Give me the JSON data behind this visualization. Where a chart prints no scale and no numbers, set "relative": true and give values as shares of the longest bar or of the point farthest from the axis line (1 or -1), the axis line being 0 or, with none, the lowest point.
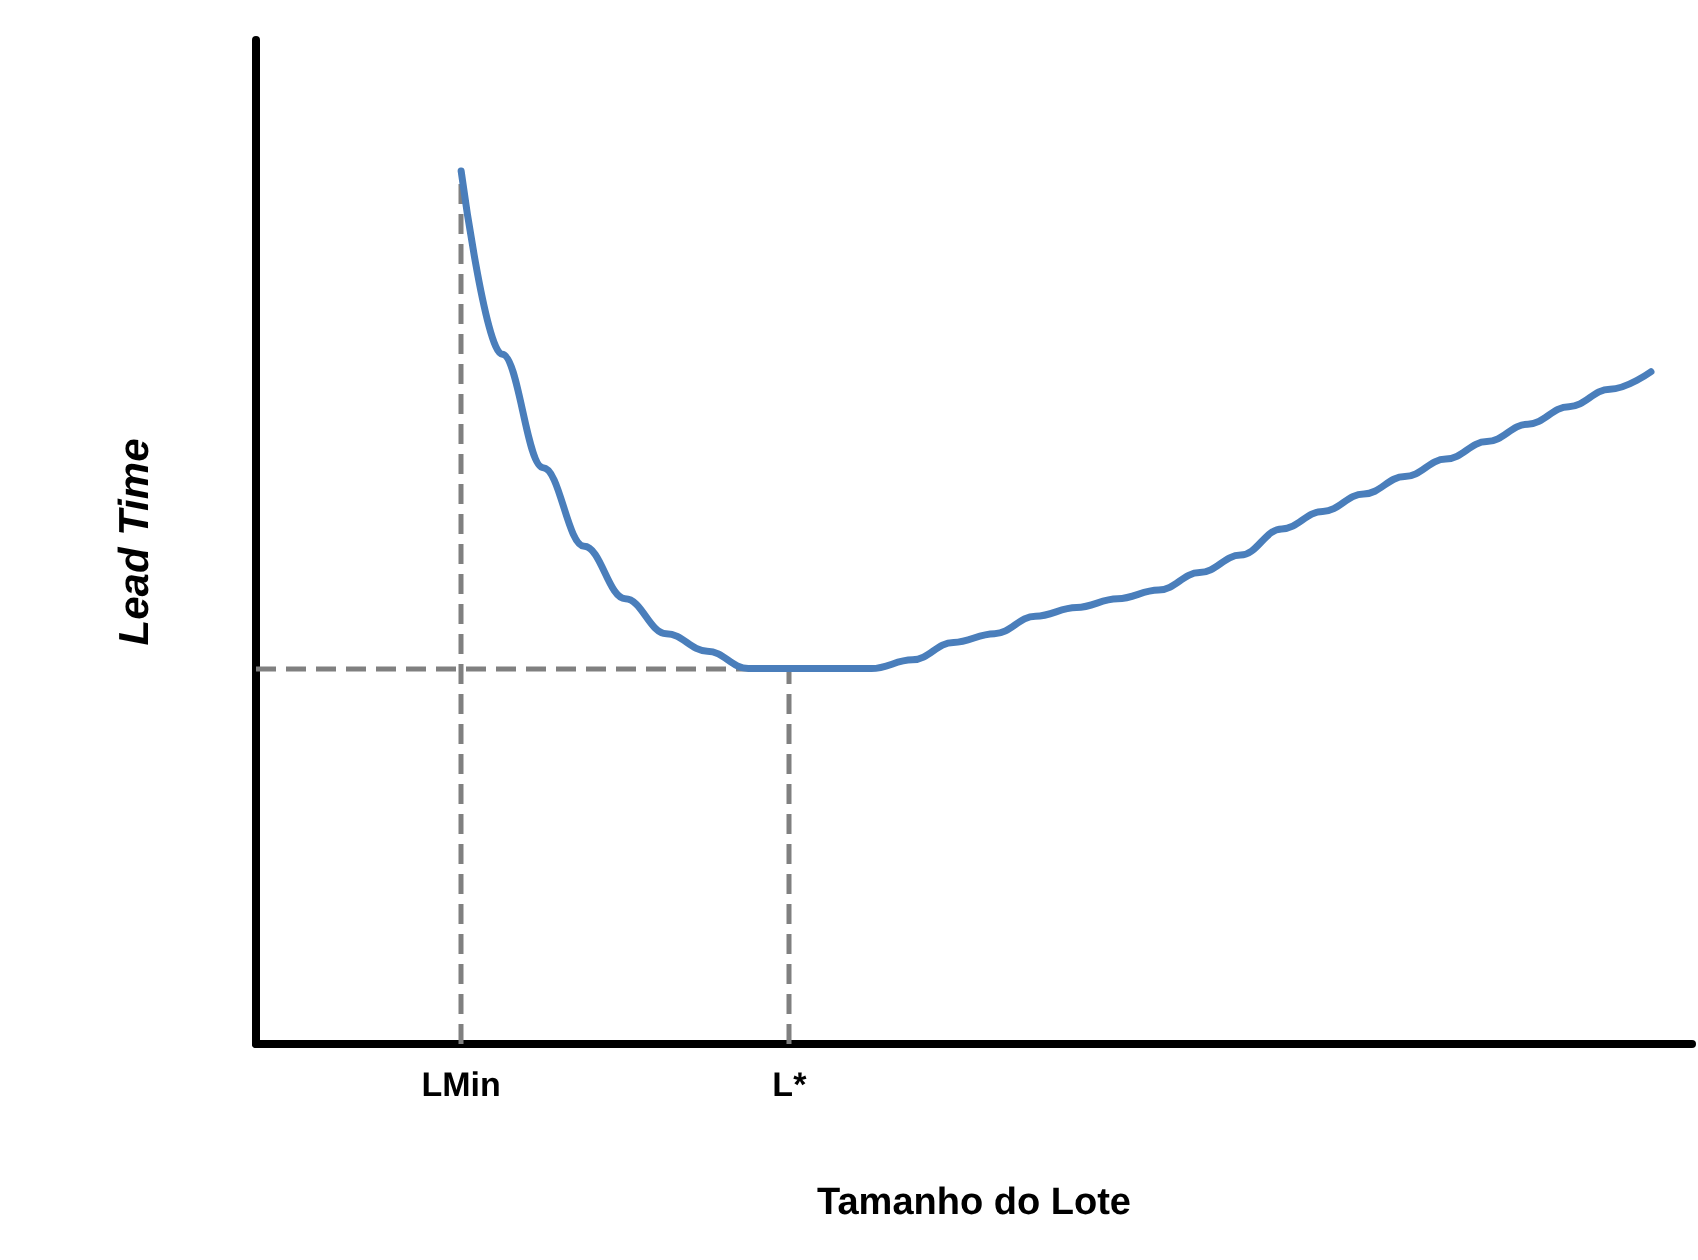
{
  "chart_data": {
    "type": "line",
    "relative": true,
    "xlabel": "Tamanho do Lote",
    "ylabel": "Lead Time",
    "categories": [
      null,
      null,
      null,
      null,
      null,
      "LMin",
      null,
      null,
      null,
      null,
      null,
      null,
      null,
      "L*",
      null,
      null,
      null,
      null,
      null,
      null,
      null,
      null,
      null,
      null,
      null,
      null,
      null,
      null,
      null,
      null,
      null,
      null,
      null,
      null,
      null,
      null
    ],
    "series": [
      {
        "color": "#4a7ebb",
        "values": [
          null,
          null,
          null,
          null,
          null,
          1.0,
          0.79,
          0.66,
          0.57,
          0.51,
          0.47,
          0.45,
          0.43,
          0.43,
          0.43,
          0.43,
          0.44,
          0.46,
          0.47,
          0.49,
          0.5,
          0.51,
          0.52,
          0.54,
          0.56,
          0.59,
          0.61,
          0.63,
          0.65,
          0.67,
          0.69,
          0.71,
          0.73,
          0.75,
          0.77,
          null
        ]
      }
    ],
    "ref_lines": [
      {
        "axis": "x",
        "value": "LMin",
        "color": "#808080",
        "line_style": "dashed"
      },
      {
        "axis": "x",
        "value": "L*",
        "color": "#808080",
        "line_style": "dashed"
      },
      {
        "axis": "y",
        "value": 0.43,
        "color": "#808080",
        "line_style": "dashed"
      }
    ],
    "grid": false,
    "marker": "none",
    "line_style": "solid"
  }
}
